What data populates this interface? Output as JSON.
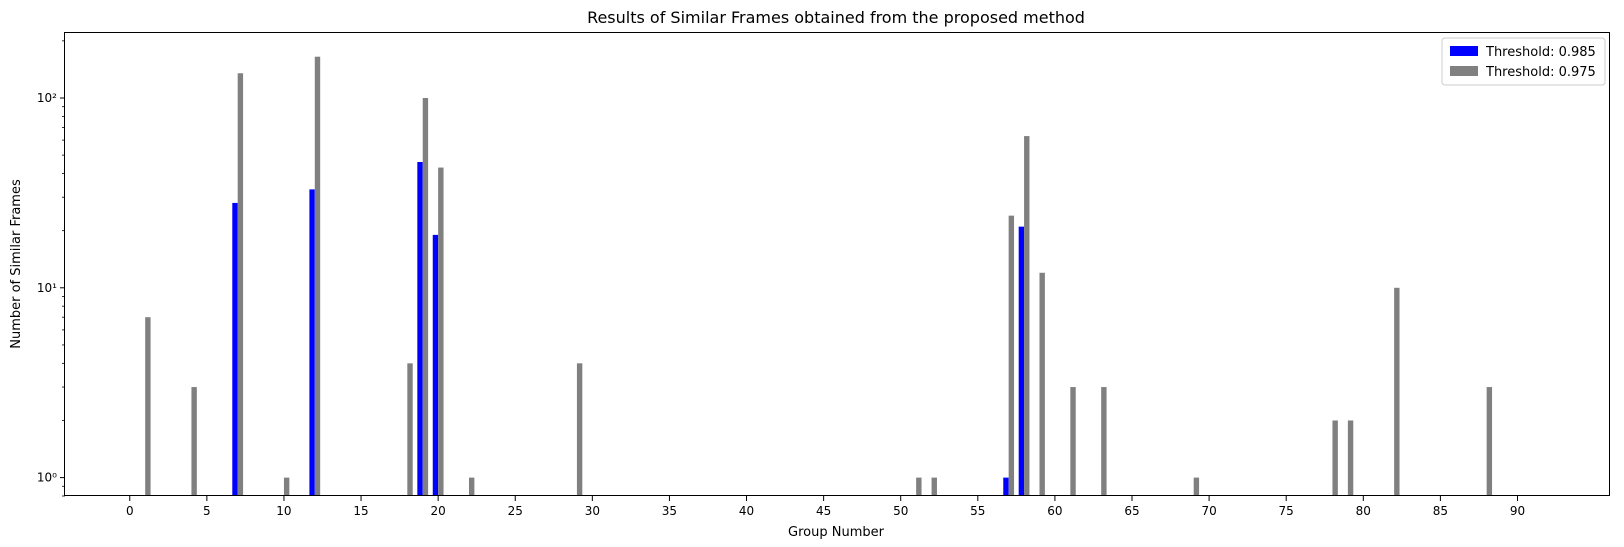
{
  "chart_data": {
    "type": "bar",
    "title": "Results of Similar Frames obtained from the proposed method",
    "xlabel": "Group Number",
    "ylabel": "Number of Similar Frames",
    "yscale": "log",
    "ylim": [
      0.8,
      220
    ],
    "xlim": [
      -4.2,
      96
    ],
    "xticks": [
      0,
      5,
      10,
      15,
      20,
      25,
      30,
      35,
      40,
      45,
      50,
      55,
      60,
      65,
      70,
      75,
      80,
      85,
      90
    ],
    "yticks": [
      {
        "value": 1,
        "label": "10⁰"
      },
      {
        "value": 10,
        "label": "10¹"
      },
      {
        "value": 100,
        "label": "10²"
      }
    ],
    "grid": false,
    "legend_position": "top-right",
    "series": [
      {
        "name": "Threshold: 0.985",
        "color": "#0000ff",
        "points": [
          {
            "x": 7,
            "y": 28
          },
          {
            "x": 12,
            "y": 33
          },
          {
            "x": 19,
            "y": 46
          },
          {
            "x": 20,
            "y": 19
          },
          {
            "x": 57,
            "y": 1
          },
          {
            "x": 58,
            "y": 21
          }
        ]
      },
      {
        "name": "Threshold: 0.975",
        "color": "#808080",
        "points": [
          {
            "x": 1,
            "y": 7
          },
          {
            "x": 4,
            "y": 3
          },
          {
            "x": 7,
            "y": 135
          },
          {
            "x": 10,
            "y": 1
          },
          {
            "x": 12,
            "y": 165
          },
          {
            "x": 18,
            "y": 4
          },
          {
            "x": 19,
            "y": 100
          },
          {
            "x": 20,
            "y": 43
          },
          {
            "x": 22,
            "y": 1
          },
          {
            "x": 29,
            "y": 4
          },
          {
            "x": 51,
            "y": 1
          },
          {
            "x": 52,
            "y": 1
          },
          {
            "x": 57,
            "y": 24
          },
          {
            "x": 58,
            "y": 63
          },
          {
            "x": 59,
            "y": 12
          },
          {
            "x": 61,
            "y": 3
          },
          {
            "x": 63,
            "y": 3
          },
          {
            "x": 69,
            "y": 1
          },
          {
            "x": 78,
            "y": 2
          },
          {
            "x": 79,
            "y": 2
          },
          {
            "x": 82,
            "y": 10
          },
          {
            "x": 88,
            "y": 3
          }
        ]
      }
    ]
  }
}
